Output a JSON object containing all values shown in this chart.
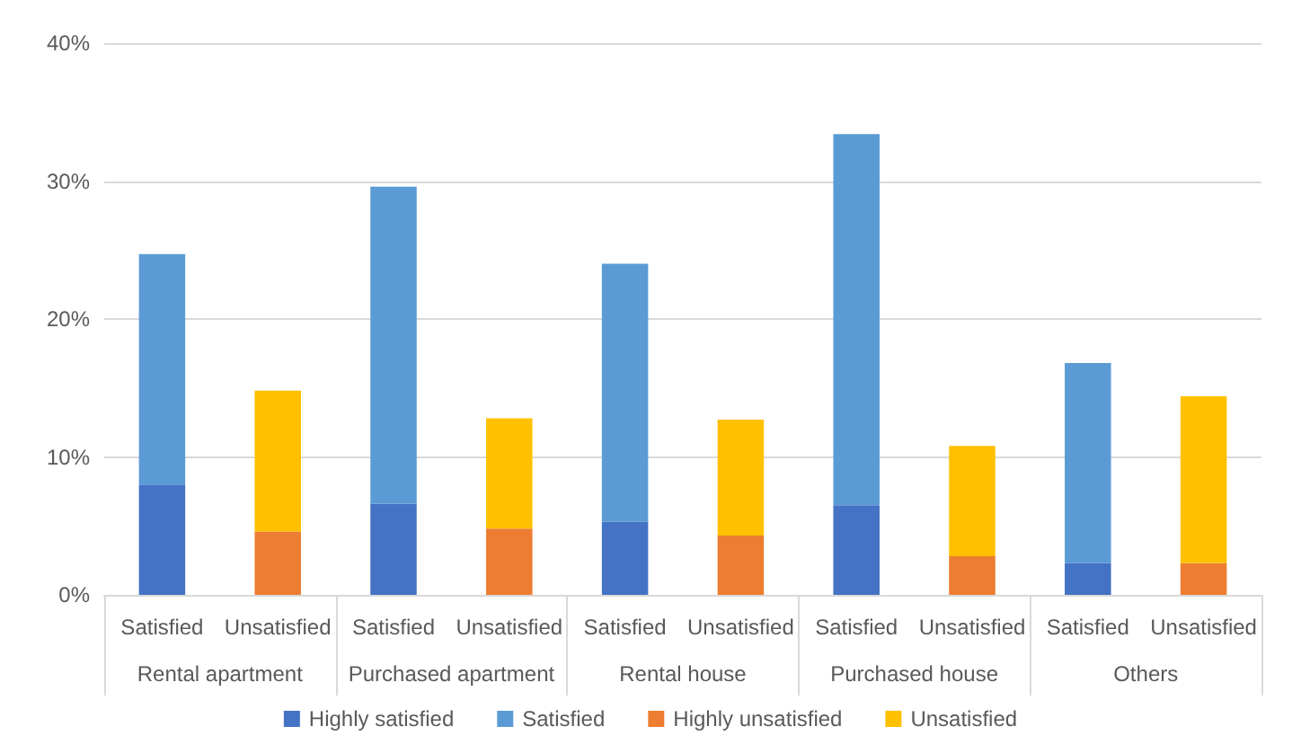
{
  "chart_data": {
    "type": "bar",
    "stacked": true,
    "categories": [
      "Satisfied",
      "Unsatisfied",
      "Satisfied",
      "Unsatisfied",
      "Satisfied",
      "Unsatisfied",
      "Satisfied",
      "Unsatisfied",
      "Satisfied",
      "Unsatisfied"
    ],
    "annotations": [
      "Rental apartment",
      "Purchased apartment",
      "Rental house",
      "Purchased house",
      "Others"
    ],
    "series": [
      {
        "name": "Highly satisfied",
        "color": "#4472c4",
        "values": [
          8.0,
          null,
          6.6,
          null,
          5.3,
          null,
          6.5,
          null,
          2.3,
          null
        ]
      },
      {
        "name": "Satisfied",
        "color": "#5b9bd5",
        "values": [
          16.7,
          null,
          23.0,
          null,
          18.7,
          null,
          26.9,
          null,
          14.5,
          null
        ]
      },
      {
        "name": "Highly unsatisfied",
        "color": "#ed7d31",
        "values": [
          null,
          4.6,
          null,
          4.8,
          null,
          4.3,
          null,
          2.8,
          null,
          2.3
        ]
      },
      {
        "name": "Unsatisfied",
        "color": "#ffc000",
        "values": [
          null,
          10.2,
          null,
          8.0,
          null,
          8.4,
          null,
          8.0,
          null,
          12.1
        ]
      }
    ],
    "ylim": [
      0,
      40
    ],
    "yticks": [
      {
        "value": 0,
        "label": "0%"
      },
      {
        "value": 10,
        "label": "10%"
      },
      {
        "value": 20,
        "label": "20%"
      },
      {
        "value": 30,
        "label": "30%"
      },
      {
        "value": 40,
        "label": "40%"
      }
    ],
    "grid": "y",
    "legend": "bottom"
  }
}
